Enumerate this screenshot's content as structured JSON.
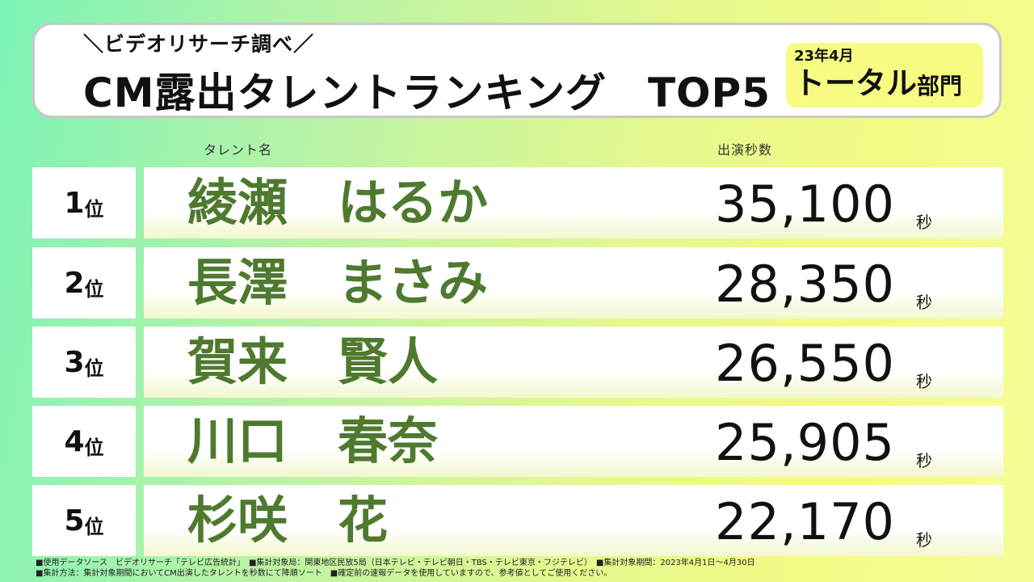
{
  "header": {
    "subtitle": "＼ビデオリサーチ調べ／",
    "title": "CM露出タレントランキング　TOP5",
    "period_date": "23年4月",
    "category_main": "トータル",
    "category_sub": "部門"
  },
  "columns": {
    "name": "タレント名",
    "seconds": "出演秒数"
  },
  "rank_suffix": "位",
  "unit": "秒",
  "rankings": [
    {
      "rank": "1",
      "name": "綾瀬　はるか",
      "seconds": "35,100"
    },
    {
      "rank": "2",
      "name": "長澤　まさみ",
      "seconds": "28,350"
    },
    {
      "rank": "3",
      "name": "賀来　賢人",
      "seconds": "26,550"
    },
    {
      "rank": "4",
      "name": "川口　春奈",
      "seconds": "25,905"
    },
    {
      "rank": "5",
      "name": "杉咲　花",
      "seconds": "22,170"
    }
  ],
  "footnotes": [
    "■使用データソース　ビデオリサーチ「テレビ広告統計」　■集計対象局：関東地区民放5局（日本テレビ・テレビ朝日・TBS・テレビ東京・フジテレビ）　■集計対象期間：2023年4月1日～4月30日",
    "■集計方法：集計対象期間においてCM出演したタレントを秒数にて降順ソート　■確定前の速報データを使用していますので、参考値としてご使用ください。"
  ],
  "colors": {
    "name_green": "#4e7a2f",
    "badge_yellow": "#f7fb82",
    "bg_left": "#7cf3b6",
    "bg_right": "#f5fc98"
  }
}
